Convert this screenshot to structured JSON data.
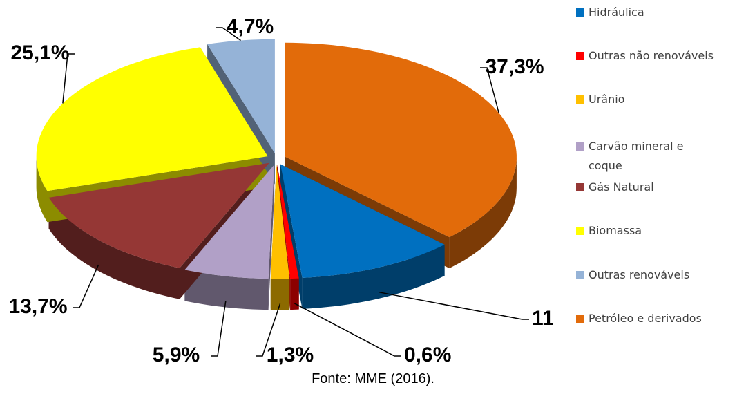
{
  "chart_data": {
    "type": "pie",
    "categories": [
      "Hidráulica",
      "Outras não renováveis",
      "Urânio",
      "Carvão mineral e coque",
      "Gás Natural",
      "Biomassa",
      "Outras renováveis",
      "Petróleo e derivados"
    ],
    "values": [
      11,
      0.6,
      1.3,
      5.9,
      13.7,
      25.1,
      4.7,
      37.3
    ],
    "value_labels": [
      "11%",
      "0,6%",
      "1,3%",
      "5,9%",
      "13,7%",
      "25,1%",
      "4,7%",
      "37,3%"
    ],
    "colors": [
      "#0070c0",
      "#ff0000",
      "#ffc000",
      "#b1a0c7",
      "#953735",
      "#ffff00",
      "#95b3d7",
      "#e26b0a"
    ],
    "source": "Fonte: MME (2016)."
  }
}
